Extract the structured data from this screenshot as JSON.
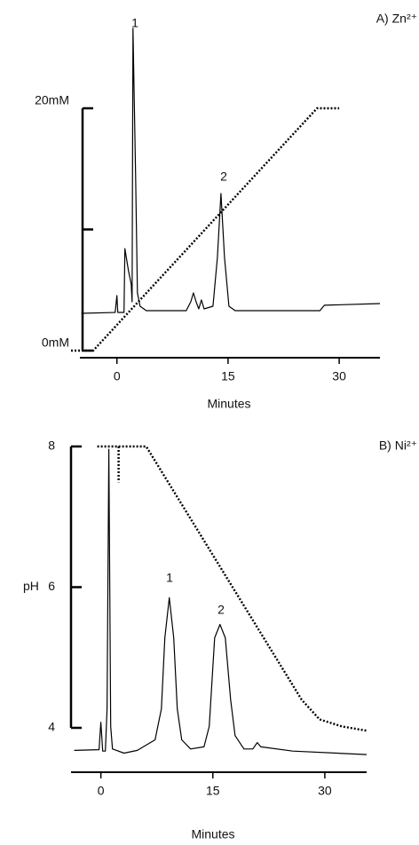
{
  "chart_data": [
    {
      "type": "line",
      "title": "A) Zn²⁺",
      "xlabel": "Minutes",
      "xlim": [
        -5,
        35.5
      ],
      "xticks": [
        0,
        15,
        30
      ],
      "ylim": [
        0,
        20
      ],
      "yticks": [
        {
          "value": 0,
          "label": "0mM"
        },
        {
          "value": 10,
          "label": null
        },
        {
          "value": 20,
          "label": "20mM"
        }
      ],
      "annotations": [
        "1",
        "2"
      ],
      "series": [
        {
          "color": "#000000",
          "style": "solid",
          "x": [
            -4.8,
            -0.24,
            0,
            0.12,
            0.96,
            1.08,
            1.56,
            1.92,
            2.04,
            2.16,
            2.52,
            2.76,
            3.12,
            3.96,
            9.36,
            9.96,
            10.32,
            10.68,
            11.04,
            11.4,
            11.76,
            12.96,
            13.56,
            14.04,
            14.52,
            15.12,
            15.96,
            27.4,
            28.0,
            35.5
          ],
          "values": [
            3.08,
            3.15,
            4.54,
            3.15,
            3.15,
            8.42,
            6.59,
            5.49,
            4.03,
            26.6,
            14.29,
            4.76,
            3.66,
            3.3,
            3.3,
            4.03,
            4.76,
            4.03,
            3.44,
            4.18,
            3.44,
            3.66,
            7.69,
            12.97,
            7.69,
            3.66,
            3.3,
            3.3,
            3.74,
            3.88
          ]
        },
        {
          "color": "#000000",
          "style": "dotted",
          "x": [
            -6.2,
            -3.2,
            27,
            30
          ],
          "values": [
            0,
            0,
            20,
            20
          ]
        }
      ]
    },
    {
      "type": "line",
      "title": "B) Ni²⁺",
      "xlabel": "Minutes",
      "ylabel": "pH",
      "xlim": [
        -4,
        35.6
      ],
      "xticks": [
        0,
        15,
        30
      ],
      "ylim": [
        4,
        8
      ],
      "yticks": [
        4,
        6,
        8
      ],
      "annotations": [
        "1",
        "2"
      ],
      "series": [
        {
          "color": "#000000",
          "style": "solid",
          "x": [
            -3.57,
            -0.24,
            0,
            0.24,
            0.6,
            0.83,
            1.07,
            1.31,
            1.55,
            3.1,
            4.88,
            7.26,
            8.1,
            8.57,
            9.17,
            9.76,
            10.24,
            10.83,
            12.02,
            13.81,
            14.52,
            15.24,
            15.95,
            16.67,
            17.38,
            17.98,
            19.17,
            20.36,
            20.95,
            21.43,
            25.71,
            35.6
          ],
          "values": [
            3.68,
            3.69,
            4.08,
            3.67,
            3.67,
            4.27,
            7.96,
            4.02,
            3.7,
            3.64,
            3.68,
            3.83,
            4.27,
            5.28,
            5.85,
            5.28,
            4.27,
            3.83,
            3.7,
            3.73,
            4.02,
            5.28,
            5.47,
            5.28,
            4.4,
            3.89,
            3.7,
            3.7,
            3.79,
            3.73,
            3.67,
            3.62
          ]
        },
        {
          "color": "#000000",
          "style": "dotted",
          "x": [
            -0.48,
            6.07,
            26.9,
            29.3,
            32.3,
            35.6
          ],
          "values": [
            8,
            8,
            4.4,
            4.12,
            4.02,
            3.96
          ]
        },
        {
          "color": "#000000",
          "style": "dotted",
          "x": [
            2.38,
            2.38
          ],
          "values": [
            8,
            7.49
          ]
        }
      ]
    }
  ]
}
